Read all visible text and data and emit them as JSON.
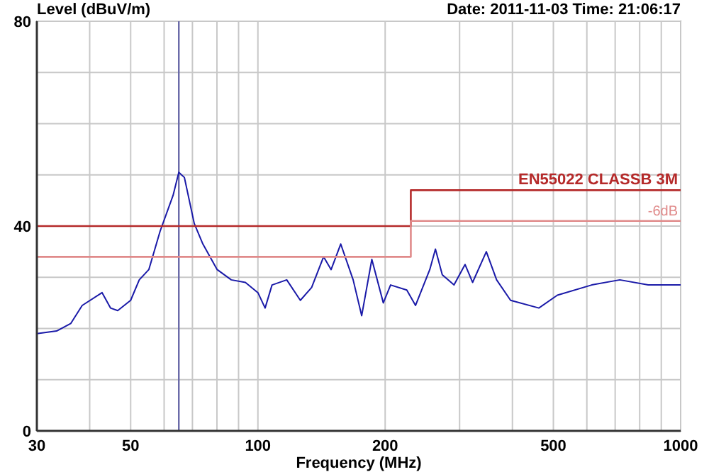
{
  "chart_data": {
    "type": "line",
    "ylabel": "Level (dBuV/m)",
    "xlabel": "Frequency (MHz)",
    "annotations": [
      "Date: 2011-11-03  Time: 21:06:17"
    ],
    "log": "x",
    "xlim": [
      30,
      1000
    ],
    "xticks": [
      30,
      {
        "value": 40,
        "label": null
      },
      50,
      {
        "value": 60,
        "label": null
      },
      {
        "value": 70,
        "label": null
      },
      {
        "value": 80,
        "label": null
      },
      {
        "value": 90,
        "label": null
      },
      100,
      200,
      {
        "value": 300,
        "label": null
      },
      {
        "value": 400,
        "label": null
      },
      500,
      {
        "value": 600,
        "label": null
      },
      {
        "value": 700,
        "label": null
      },
      {
        "value": 800,
        "label": null
      },
      {
        "value": 900,
        "label": null
      },
      1000
    ],
    "ylim": [
      0,
      80
    ],
    "yticks": [
      0,
      {
        "value": 10,
        "label": null
      },
      {
        "value": 20,
        "label": null
      },
      {
        "value": 30,
        "label": null
      },
      40,
      {
        "value": 50,
        "label": null
      },
      {
        "value": 60,
        "label": null
      },
      {
        "value": 70,
        "label": null
      },
      80
    ],
    "grid": true,
    "ref_lines": [
      {
        "axis": "x",
        "value": 65,
        "color": "#6a6aa8"
      }
    ],
    "series": [
      {
        "color": "#1a1aa8",
        "x": [
          30,
          33.4,
          36.1,
          38.4,
          42.8,
          44.8,
          46.6,
          50,
          52.4,
          55.2,
          58.7,
          63,
          65,
          67,
          70.7,
          74.1,
          80.1,
          86.5,
          93.4,
          100,
          104,
          108,
          117,
          126,
          134,
          143,
          149,
          157,
          168,
          176,
          186,
          198,
          206,
          225,
          236,
          255,
          263,
          273,
          291,
          309,
          322,
          347,
          367,
          396,
          462,
          511,
          616,
          718,
          838,
          1000
        ],
        "values": [
          19,
          19.5,
          21,
          24.5,
          27,
          24,
          23.5,
          25.5,
          29.5,
          31.5,
          39,
          46,
          50.5,
          49.5,
          40.5,
          36.5,
          31.5,
          29.5,
          29,
          27,
          24,
          28.5,
          29.5,
          25.5,
          28,
          34,
          31.5,
          36.5,
          29.5,
          22.5,
          33.5,
          25,
          28.5,
          27.5,
          24.5,
          31.5,
          35.5,
          30.5,
          28.5,
          32.5,
          29,
          35,
          29.5,
          25.5,
          24,
          26.5,
          28.5,
          29.5,
          28.5,
          28.5
        ]
      },
      {
        "type": "step",
        "name": "EN55022 CLASSB 3M",
        "color": "#b52a2a",
        "x": [
          30,
          230,
          1000
        ],
        "values": [
          40,
          47,
          47
        ]
      },
      {
        "type": "step",
        "name": "-6dB",
        "color": "#e08a8a",
        "x": [
          30,
          230,
          1000
        ],
        "values": [
          34,
          41,
          41
        ]
      }
    ]
  }
}
